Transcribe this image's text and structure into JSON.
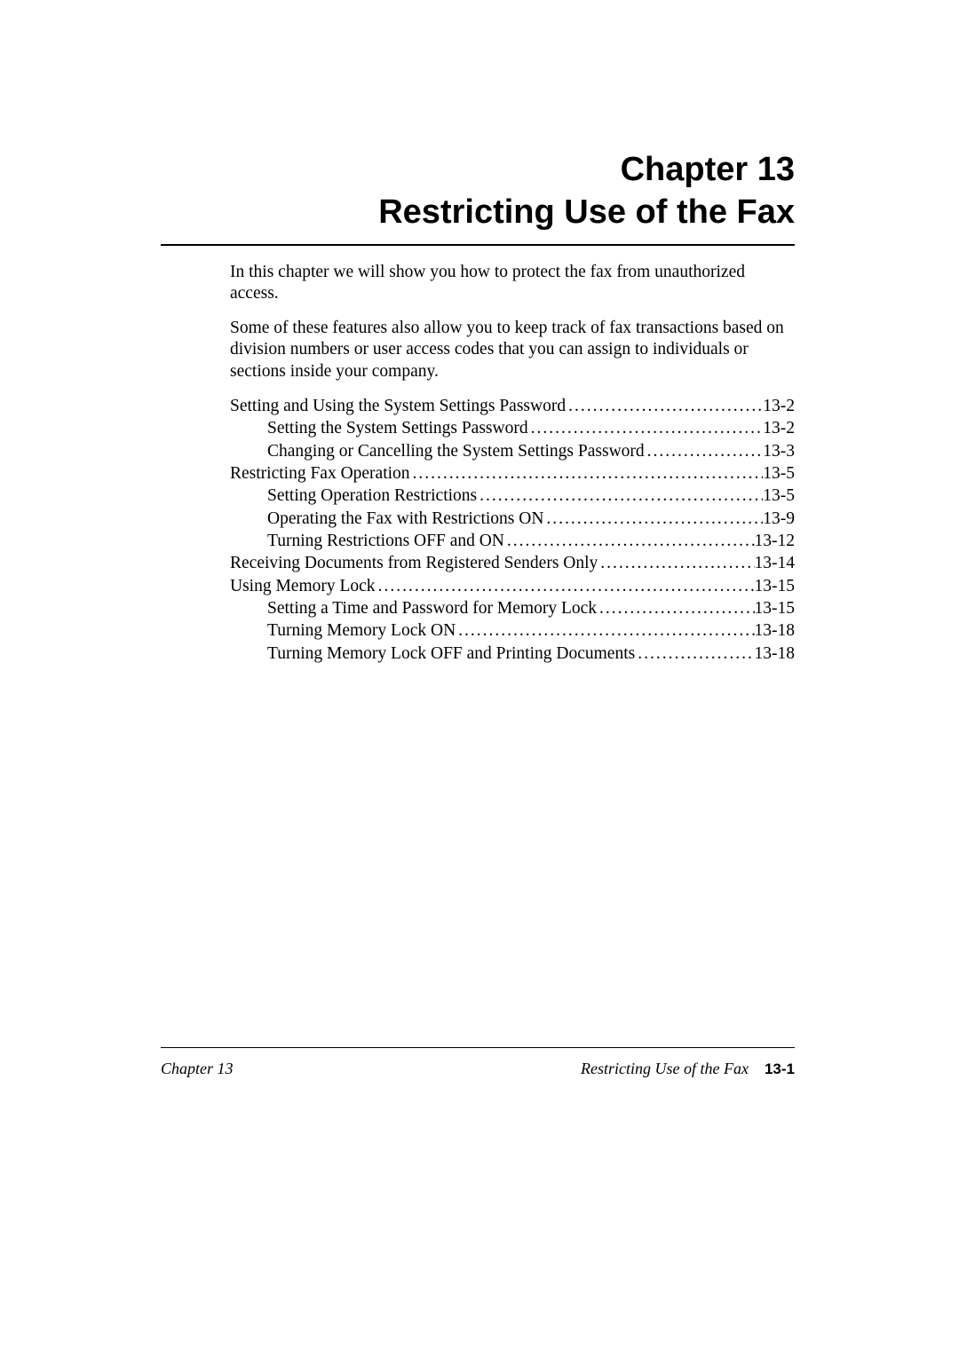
{
  "chapter": {
    "line1": "Chapter 13",
    "line2": "Restricting Use of the Fax"
  },
  "paragraphs": {
    "p1": "In this chapter we will show you how to protect the fax from unauthorized access.",
    "p2": "Some of these features also allow you to keep track of fax transactions based on division numbers or user access codes that you can assign to individuals or sections inside your company."
  },
  "toc": [
    {
      "label": "Setting and Using the System Settings Password",
      "page": "13-2",
      "indent": 0
    },
    {
      "label": "Setting the System Settings Password",
      "page": "13-2",
      "indent": 1
    },
    {
      "label": "Changing or Cancelling the System Settings Password",
      "page": "13-3",
      "indent": 1
    },
    {
      "label": "Restricting Fax Operation",
      "page": "13-5",
      "indent": 0
    },
    {
      "label": "Setting Operation Restrictions",
      "page": "13-5",
      "indent": 1
    },
    {
      "label": "Operating the Fax with Restrictions ON",
      "page": "13-9",
      "indent": 1
    },
    {
      "label": "Turning Restrictions OFF and ON",
      "page": "13-12",
      "indent": 1
    },
    {
      "label": "Receiving Documents from Registered Senders Only",
      "page": "13-14",
      "indent": 0
    },
    {
      "label": "Using Memory Lock",
      "page": "13-15",
      "indent": 0
    },
    {
      "label": "Setting a Time and Password for Memory Lock",
      "page": "13-15",
      "indent": 1
    },
    {
      "label": "Turning Memory Lock ON",
      "page": "13-18",
      "indent": 1
    },
    {
      "label": "Turning Memory Lock OFF and Printing Documents",
      "page": "13-18",
      "indent": 1
    }
  ],
  "footer": {
    "left": "Chapter 13",
    "section": "Restricting Use of the Fax",
    "pagenum": "13-1"
  }
}
